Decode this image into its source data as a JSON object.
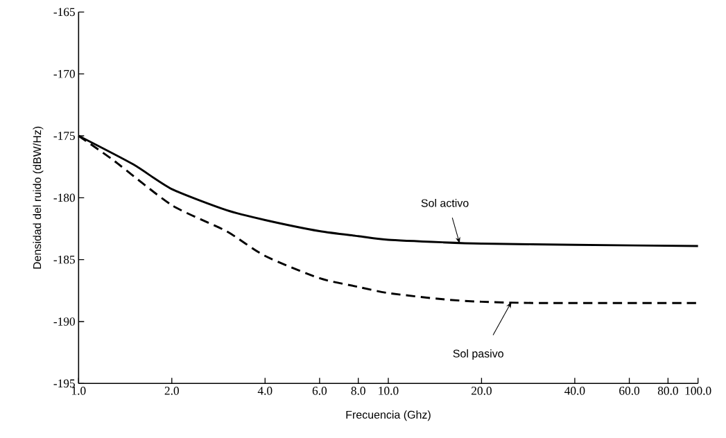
{
  "chart_data": {
    "type": "line",
    "xlabel": "Frecuencia (Ghz)",
    "ylabel": "Densidad del ruido (dBW/Hz)",
    "log": "x",
    "grid": false,
    "marker": "none",
    "xlim": [
      1,
      100
    ],
    "ylim": [
      -195,
      -165
    ],
    "xticks": [
      {
        "value": 1,
        "label": "1.0"
      },
      {
        "value": 2,
        "label": "2.0"
      },
      {
        "value": 4,
        "label": "4.0"
      },
      {
        "value": 6,
        "label": "6.0"
      },
      {
        "value": 8,
        "label": "8.0"
      },
      {
        "value": 10,
        "label": "10.0"
      },
      {
        "value": 20,
        "label": "20.0"
      },
      {
        "value": 40,
        "label": "40.0"
      },
      {
        "value": 60,
        "label": "60.0"
      },
      {
        "value": 80,
        "label": "80.0"
      },
      {
        "value": 100,
        "label": "100.0"
      }
    ],
    "yticks": [
      -165,
      -170,
      -175,
      -180,
      -185,
      -190,
      -195
    ],
    "series": [
      {
        "color": "#000000",
        "line_style": "solid",
        "x": [
          1,
          1.5,
          2,
          3,
          4,
          6,
          8,
          10,
          15,
          20,
          40,
          100
        ],
        "values": [
          -175,
          -177.3,
          -179.3,
          -181.0,
          -181.8,
          -182.7,
          -183.1,
          -183.4,
          -183.6,
          -183.7,
          -183.8,
          -183.9
        ]
      },
      {
        "color": "#000000",
        "line_style": "dashed",
        "x": [
          1,
          1.3,
          2,
          3,
          4,
          6,
          8,
          10,
          15,
          20,
          30,
          100
        ],
        "values": [
          -175,
          -177.0,
          -180.6,
          -182.7,
          -184.7,
          -186.5,
          -187.2,
          -187.7,
          -188.2,
          -188.4,
          -188.5,
          -188.5
        ]
      }
    ],
    "annotations": [
      {
        "text": "Sol activo",
        "x": 17,
        "y": -183.7
      },
      {
        "text": "Sol pasivo",
        "x": 25,
        "y": -188.4
      }
    ]
  }
}
